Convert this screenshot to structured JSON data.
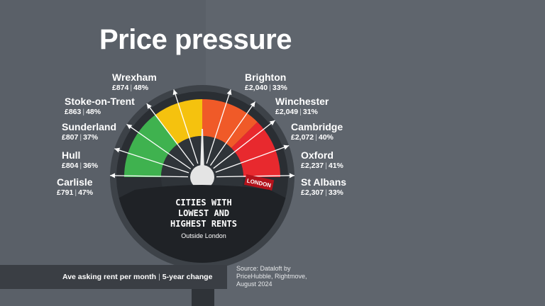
{
  "title": "Price pressure",
  "cities_left": [
    {
      "name": "Wrexham",
      "rent": "£874",
      "change": "48%"
    },
    {
      "name": "Stoke-on-Trent",
      "rent": "£863",
      "change": "48%"
    },
    {
      "name": "Sunderland",
      "rent": "£807",
      "change": "37%"
    },
    {
      "name": "Hull",
      "rent": "£804",
      "change": "36%"
    },
    {
      "name": "Carlisle",
      "rent": "£791",
      "change": "47%"
    }
  ],
  "cities_right": [
    {
      "name": "Brighton",
      "rent": "£2,040",
      "change": "33%"
    },
    {
      "name": "Winchester",
      "rent": "£2,049",
      "change": "31%"
    },
    {
      "name": "Cambridge",
      "rent": "£2,072",
      "change": "40%"
    },
    {
      "name": "Oxford",
      "rent": "£2,237",
      "change": "41%"
    },
    {
      "name": "St Albans",
      "rent": "£2,307",
      "change": "33%"
    }
  ],
  "gauge": {
    "heading_line1": "CITIES WITH",
    "heading_line2": "LOWEST AND",
    "heading_line3": "HIGHEST RENTS",
    "subheading": "Outside London",
    "marker": "LONDON",
    "colors": {
      "green": "#3fb24f",
      "yellow": "#f5c20e",
      "orange": "#f05a28",
      "red": "#e8292e"
    }
  },
  "legend": {
    "rent": "Ave asking rent per month",
    "change": "5-year change"
  },
  "source": {
    "line1": "Source: Dataloft by",
    "line2": "PriceHubble, Rightmove,",
    "line3": "August 2024"
  }
}
